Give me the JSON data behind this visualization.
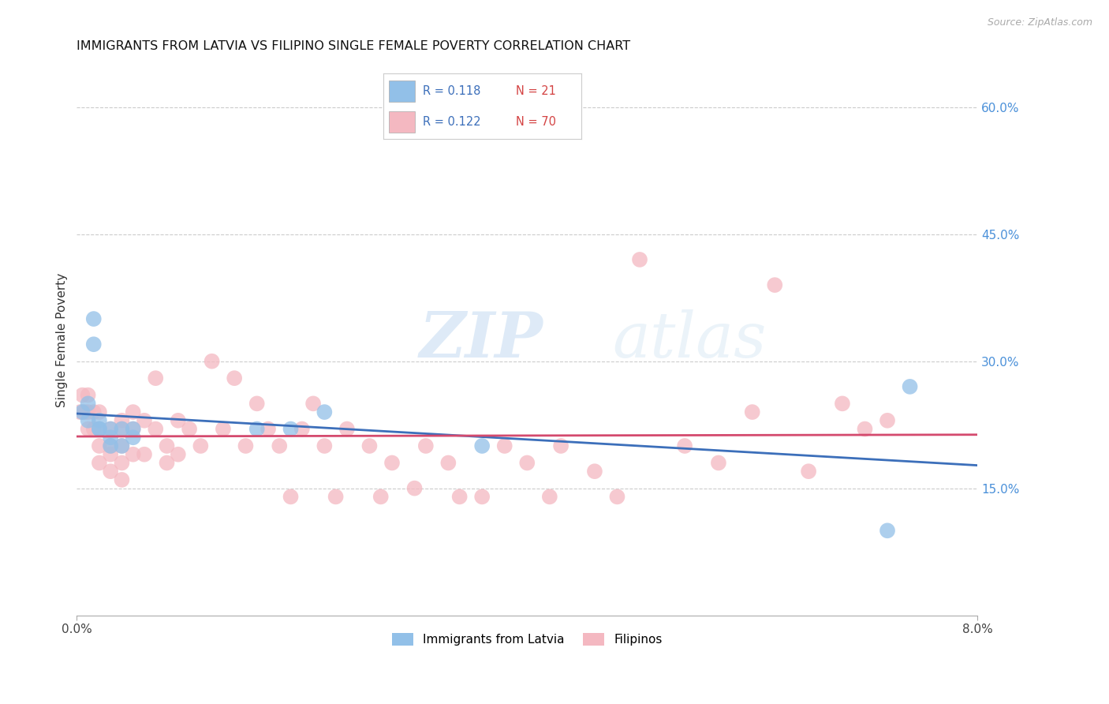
{
  "title": "IMMIGRANTS FROM LATVIA VS FILIPINO SINGLE FEMALE POVERTY CORRELATION CHART",
  "source": "Source: ZipAtlas.com",
  "ylabel": "Single Female Poverty",
  "xlim": [
    0.0,
    0.08
  ],
  "ylim": [
    0.0,
    0.65
  ],
  "watermark_zip": "ZIP",
  "watermark_atlas": "atlas",
  "blue_color": "#92c0e8",
  "pink_color": "#f4b8c1",
  "blue_line_color": "#3c6fba",
  "pink_line_color": "#d44a6e",
  "legend_r1": "R = 0.118",
  "legend_n1": "N = 21",
  "legend_r2": "R = 0.122",
  "legend_n2": "N = 70",
  "latvia_x": [
    0.0005,
    0.001,
    0.001,
    0.0015,
    0.0015,
    0.002,
    0.002,
    0.002,
    0.003,
    0.003,
    0.003,
    0.004,
    0.004,
    0.005,
    0.005,
    0.016,
    0.019,
    0.022,
    0.036,
    0.072,
    0.074
  ],
  "latvia_y": [
    0.24,
    0.25,
    0.23,
    0.35,
    0.32,
    0.22,
    0.23,
    0.22,
    0.22,
    0.21,
    0.2,
    0.22,
    0.2,
    0.22,
    0.21,
    0.22,
    0.22,
    0.24,
    0.2,
    0.1,
    0.27
  ],
  "filipino_x": [
    0.0003,
    0.0005,
    0.0007,
    0.001,
    0.001,
    0.001,
    0.0015,
    0.0015,
    0.002,
    0.002,
    0.002,
    0.002,
    0.003,
    0.003,
    0.003,
    0.003,
    0.004,
    0.004,
    0.004,
    0.004,
    0.004,
    0.005,
    0.005,
    0.005,
    0.006,
    0.006,
    0.007,
    0.007,
    0.008,
    0.008,
    0.009,
    0.009,
    0.01,
    0.011,
    0.012,
    0.013,
    0.014,
    0.015,
    0.016,
    0.017,
    0.018,
    0.019,
    0.02,
    0.021,
    0.022,
    0.023,
    0.024,
    0.026,
    0.027,
    0.028,
    0.03,
    0.031,
    0.033,
    0.034,
    0.036,
    0.038,
    0.04,
    0.042,
    0.043,
    0.046,
    0.048,
    0.05,
    0.054,
    0.057,
    0.06,
    0.062,
    0.065,
    0.068,
    0.07,
    0.072
  ],
  "filipino_y": [
    0.24,
    0.26,
    0.24,
    0.26,
    0.24,
    0.22,
    0.24,
    0.22,
    0.24,
    0.22,
    0.2,
    0.18,
    0.22,
    0.2,
    0.19,
    0.17,
    0.23,
    0.22,
    0.2,
    0.18,
    0.16,
    0.24,
    0.22,
    0.19,
    0.23,
    0.19,
    0.28,
    0.22,
    0.2,
    0.18,
    0.23,
    0.19,
    0.22,
    0.2,
    0.3,
    0.22,
    0.28,
    0.2,
    0.25,
    0.22,
    0.2,
    0.14,
    0.22,
    0.25,
    0.2,
    0.14,
    0.22,
    0.2,
    0.14,
    0.18,
    0.15,
    0.2,
    0.18,
    0.14,
    0.14,
    0.2,
    0.18,
    0.14,
    0.2,
    0.17,
    0.14,
    0.42,
    0.2,
    0.18,
    0.24,
    0.39,
    0.17,
    0.25,
    0.22,
    0.23
  ],
  "grid_color": "#cccccc",
  "background_color": "#ffffff",
  "title_fontsize": 11.5,
  "axis_label_fontsize": 11,
  "tick_fontsize": 11,
  "right_tick_color": "#4a90d9"
}
